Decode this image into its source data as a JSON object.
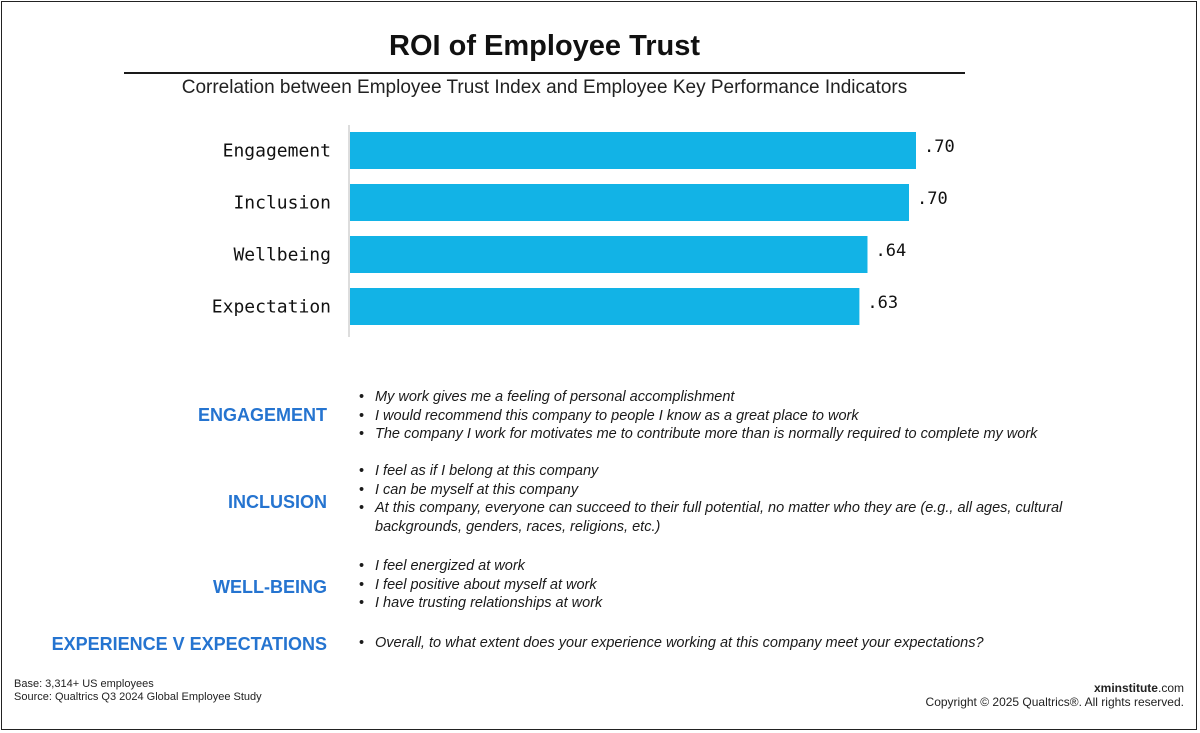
{
  "title": "ROI of Employee Trust",
  "subtitle": "Correlation between Employee Trust Index and Employee Key Performance Indicators",
  "colors": {
    "bar": "#12b3e6",
    "heading": "#2574d0",
    "axis": "#bbbbbb"
  },
  "chart_data": {
    "type": "bar",
    "orientation": "horizontal",
    "categories": [
      "Engagement",
      "Inclusion",
      "Wellbeing",
      "Expectation"
    ],
    "values": [
      0.7,
      0.7,
      0.64,
      0.63
    ],
    "labels": [
      ".70",
      ".70",
      ".64",
      ".63"
    ],
    "xlim": [
      0,
      0.7
    ],
    "grid": false
  },
  "definitions": [
    {
      "heading": "ENGAGEMENT",
      "items": [
        "My work gives me a feeling of personal accomplishment",
        "I would recommend this company to people I know as a great place to work",
        "The company I work for motivates me to contribute more than is normally required to complete my work"
      ]
    },
    {
      "heading": "INCLUSION",
      "items": [
        "I feel as if I belong at this company",
        "I can be myself at this company",
        "At this company, everyone can succeed to their full potential, no matter who they are (e.g., all ages, cultural backgrounds, genders, races, religions, etc.)"
      ]
    },
    {
      "heading": "WELL-BEING",
      "items": [
        "I feel energized at work",
        "I feel positive about myself at work",
        "I have trusting relationships at work"
      ]
    },
    {
      "heading": "EXPERIENCE V EXPECTATIONS",
      "items": [
        "Overall, to what extent does your experience working at this company meet your expectations?"
      ]
    }
  ],
  "footnote": {
    "base": "Base: 3,314+ US employees",
    "source": "Source: Qualtrics Q3 2024 Global Employee Study"
  },
  "brand": {
    "domain_bold": "xminstitute",
    "domain_suffix": ".com",
    "copyright": "Copyright © 2025 Qualtrics®. All rights reserved."
  }
}
